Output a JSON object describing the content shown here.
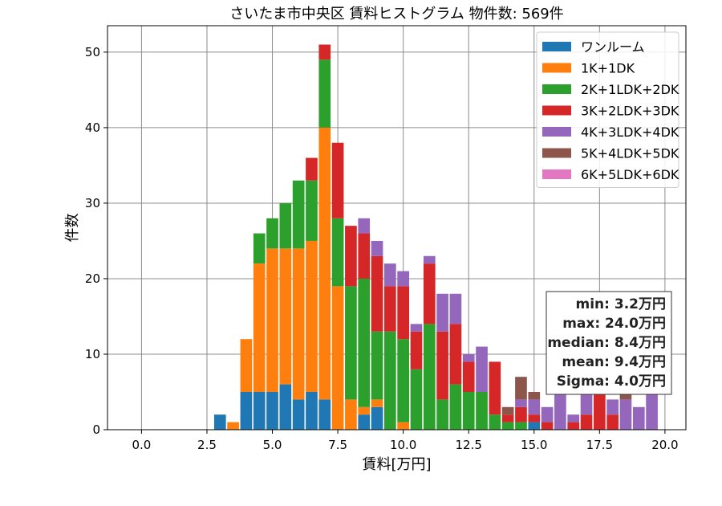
{
  "chart_data": {
    "type": "bar",
    "stacked": true,
    "title": "さいたま市中央区 賃料ヒストグラム  物件数: 569件",
    "xlabel": "賃料[万円]",
    "ylabel": "件数",
    "xlim": [
      -1.3,
      20.8
    ],
    "ylim": [
      0,
      53.5
    ],
    "xticks": [
      "0.0",
      "2.5",
      "5.0",
      "7.5",
      "10.0",
      "12.5",
      "15.0",
      "17.5",
      "20.0"
    ],
    "xtick_values": [
      0,
      2.5,
      5,
      7.5,
      10,
      12.5,
      15,
      17.5,
      20
    ],
    "yticks": [
      "0",
      "10",
      "20",
      "30",
      "40",
      "50"
    ],
    "ytick_values": [
      0,
      10,
      20,
      30,
      40,
      50
    ],
    "grid": true,
    "legend_position": "top-right",
    "bin_width": 0.5,
    "x": [
      3.0,
      3.5,
      4.0,
      4.5,
      5.0,
      5.5,
      6.0,
      6.5,
      7.0,
      7.5,
      8.0,
      8.5,
      9.0,
      9.5,
      10.0,
      10.5,
      11.0,
      11.5,
      12.0,
      12.5,
      13.0,
      13.5,
      14.0,
      14.5,
      15.0,
      15.5,
      16.0,
      16.5,
      17.0,
      17.5,
      18.0,
      18.5,
      19.0,
      19.5
    ],
    "series": [
      {
        "name": "ワンルーム",
        "color": "#1f77b4",
        "values": [
          2,
          0,
          5,
          5,
          5,
          6,
          4,
          5,
          4,
          0,
          0,
          2,
          3,
          0,
          0,
          0,
          0,
          0,
          0,
          0,
          0,
          0,
          0,
          0,
          1,
          0,
          0,
          0,
          0,
          0,
          0,
          0,
          0,
          0
        ]
      },
      {
        "name": "1K+1DK",
        "color": "#ff7f0e",
        "values": [
          0,
          1,
          7,
          17,
          19,
          18,
          20,
          20,
          36,
          19,
          4,
          1,
          1,
          0,
          1,
          0,
          0,
          0,
          0,
          0,
          0,
          0,
          0,
          0,
          0,
          0,
          0,
          0,
          0,
          0,
          0,
          0,
          0,
          0
        ]
      },
      {
        "name": "2K+1LDK+2DK",
        "color": "#2ca02c",
        "values": [
          0,
          0,
          0,
          4,
          4,
          6,
          9,
          8,
          9,
          9,
          15,
          17,
          9,
          13,
          11,
          8,
          14,
          4,
          6,
          5,
          5,
          2,
          1,
          1,
          0,
          0,
          0,
          0,
          0,
          0,
          0,
          0,
          0,
          0
        ]
      },
      {
        "name": "3K+2LDK+3DK",
        "color": "#d62728",
        "values": [
          0,
          0,
          0,
          0,
          0,
          0,
          0,
          3,
          2,
          10,
          8,
          6,
          10,
          6,
          7,
          5,
          8,
          9,
          8,
          4,
          0,
          7,
          1,
          2,
          1,
          1,
          0,
          1,
          2,
          5,
          2,
          0,
          0,
          0
        ]
      },
      {
        "name": "4K+3LDK+4DK",
        "color": "#9467bd",
        "values": [
          0,
          0,
          0,
          0,
          0,
          0,
          0,
          0,
          0,
          0,
          0,
          2,
          2,
          3,
          2,
          1,
          1,
          5,
          4,
          1,
          6,
          0,
          0,
          1,
          2,
          2,
          7,
          1,
          3,
          2,
          2,
          4,
          3,
          5
        ]
      },
      {
        "name": "5K+4LDK+5DK",
        "color": "#8c564b",
        "values": [
          0,
          0,
          0,
          0,
          0,
          0,
          0,
          0,
          0,
          0,
          0,
          0,
          0,
          0,
          0,
          0,
          0,
          0,
          0,
          0,
          0,
          0,
          1,
          3,
          1,
          0,
          0,
          0,
          1,
          0,
          0,
          1,
          0,
          1
        ]
      },
      {
        "name": "6K+5LDK+6DK",
        "color": "#e377c2",
        "values": [
          0,
          0,
          0,
          0,
          0,
          0,
          0,
          0,
          0,
          0,
          0,
          0,
          0,
          0,
          0,
          0,
          0,
          0,
          0,
          0,
          0,
          0,
          0,
          0,
          0,
          0,
          0,
          0,
          0,
          0,
          0,
          0,
          0,
          0
        ]
      }
    ],
    "stats": [
      "min: 3.2万円",
      "max: 24.0万円",
      "median: 8.4万円",
      "mean: 9.4万円",
      "Sigma: 4.0万円"
    ]
  }
}
